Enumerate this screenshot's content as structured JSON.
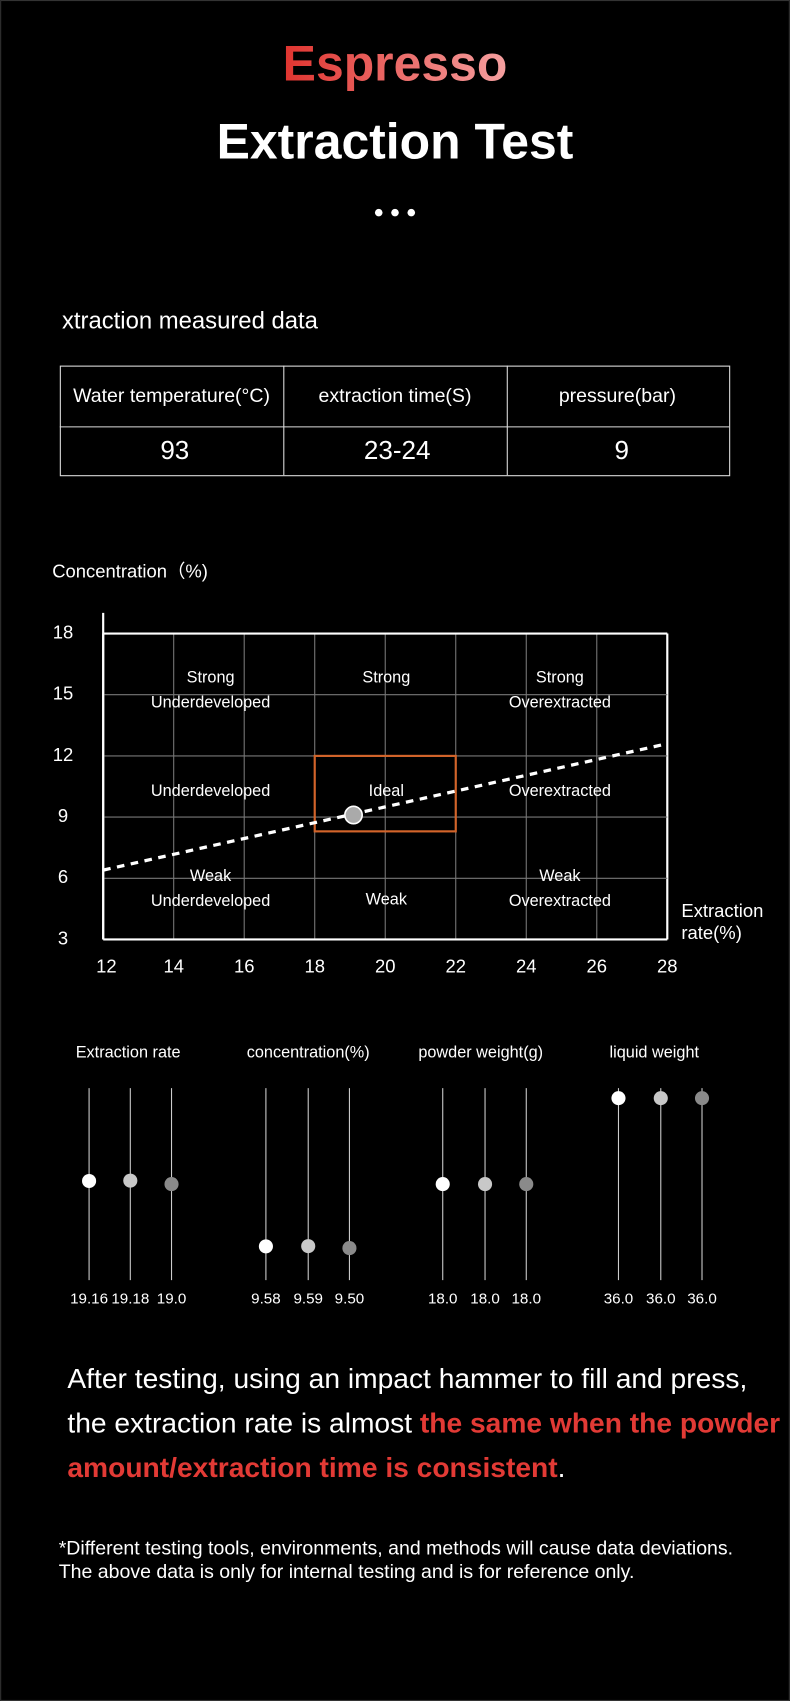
{
  "header": {
    "title": "Espresso",
    "subtitle": "Extraction Test"
  },
  "section_title": "xtraction measured data",
  "table": {
    "columns": [
      "Water temperature(°C)",
      "extraction time(S)",
      "pressure(bar)"
    ],
    "rows": [
      [
        "93",
        "23-24",
        "9"
      ]
    ]
  },
  "chart_data": [
    {
      "type": "scatter",
      "ylabel": "Concentration（%)",
      "xlabel": [
        "Extraction",
        "rate(%)"
      ],
      "xlim": [
        12,
        28
      ],
      "ylim": [
        3,
        18
      ],
      "xticks": [
        12,
        14,
        16,
        18,
        20,
        22,
        24,
        26,
        28
      ],
      "yticks": [
        3,
        6,
        9,
        12,
        15,
        18
      ],
      "grid": true,
      "zones": [
        [
          "Strong",
          "Underdeveloped"
        ],
        [
          "Strong"
        ],
        [
          "Strong",
          "Overextracted"
        ],
        [
          "Underdeveloped"
        ],
        [
          "Ideal"
        ],
        [
          "Overextracted"
        ],
        [
          "Weak",
          "Underdeveloped"
        ],
        [
          "Weak"
        ],
        [
          "Weak",
          "Overextracted"
        ]
      ],
      "ideal_box": {
        "x": [
          18,
          22
        ],
        "y": [
          8.3,
          12
        ],
        "color": "#d2642a"
      },
      "trend_line": {
        "x": [
          12,
          28
        ],
        "y": [
          6.4,
          12.6
        ],
        "color": "#ffffff"
      },
      "series": [
        {
          "x": [
            19.1
          ],
          "values": [
            9.1
          ],
          "color": "#aaaaaa"
        }
      ]
    },
    {
      "type": "dot",
      "title": "Extraction rate",
      "values": [
        19.16,
        19.18,
        19
      ],
      "value_labels": [
        "19.16",
        "19.18",
        "19.0"
      ],
      "ylim": [
        14,
        24
      ],
      "colors": [
        "#ffffff",
        "#c8c8c8",
        "#8a8a8a"
      ]
    },
    {
      "type": "dot",
      "title": "concentration(%)",
      "values": [
        9.58,
        9.59,
        9.5
      ],
      "value_labels": [
        "9.58",
        "9.59",
        "9.50"
      ],
      "ylim": [
        8,
        17
      ],
      "colors": [
        "#ffffff",
        "#c8c8c8",
        "#8a8a8a"
      ]
    },
    {
      "type": "dot",
      "title": "powder weight(g)",
      "values": [
        18,
        18,
        18
      ],
      "value_labels": [
        "18.0",
        "18.0",
        "18.0"
      ],
      "ylim": [
        9,
        27
      ],
      "colors": [
        "#ffffff",
        "#c8c8c8",
        "#8a8a8a"
      ]
    },
    {
      "type": "dot",
      "title": "liquid weight",
      "values": [
        36,
        36,
        36
      ],
      "value_labels": [
        "36.0",
        "36.0",
        "36.0"
      ],
      "ylim": [
        0,
        38
      ],
      "colors": [
        "#ffffff",
        "#c8c8c8",
        "#8a8a8a"
      ]
    }
  ],
  "conclusion": {
    "parts": [
      "After testing, using an impact hammer to fill and press,",
      "the extraction rate is almost ",
      "the same when the powder",
      "amount/extraction time is consistent",
      "."
    ],
    "highlight_color": "#e23a35"
  },
  "footnote": [
    "*Different testing tools, environments, and methods will cause data deviations.",
    "The above data is only for internal testing and is for reference only."
  ]
}
